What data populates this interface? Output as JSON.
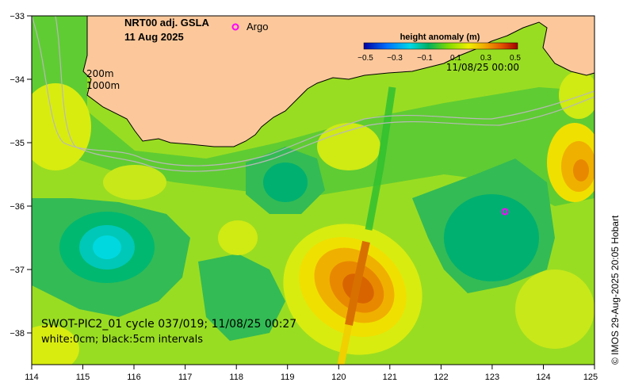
{
  "title": {
    "line1": "NRT00 adj. GSLA",
    "line2": "11 Aug 2025"
  },
  "legend": {
    "argo_symbol": "o",
    "argo_label": "Argo",
    "argo_color": "#ff00ff"
  },
  "colorbar": {
    "title": "height anomaly (m)",
    "ticks": [
      "−0.5",
      "−0.3",
      "−0.1",
      "0.1",
      "0.3",
      "0.5"
    ],
    "time_label": "11/08/25 00:00"
  },
  "isobaths": {
    "label_200": "200m",
    "label_1000": "1000m"
  },
  "swot": {
    "line1": "SWOT-PIC2_01 cycle 037/019; 11/08/25 00:27",
    "line2": "white:0cm; black:5cm intervals"
  },
  "credit": "© IMOS 29-Aug-2025 20:05 Hobart",
  "axes": {
    "x_ticks": [
      "114",
      "115",
      "116",
      "117",
      "118",
      "119",
      "120",
      "121",
      "122",
      "123",
      "124",
      "125"
    ],
    "y_ticks": [
      "−33",
      "−34",
      "−35",
      "−36",
      "−37",
      "−38"
    ]
  },
  "map_data": {
    "lon_range": [
      114,
      125
    ],
    "lat_range": [
      -38.5,
      -33
    ],
    "land_color": "#fcc89b",
    "argo_floats": [
      {
        "lon": 123.25,
        "lat": -36.1
      }
    ],
    "anomaly_features": [
      {
        "type": "warm-eddy",
        "lon": 120.4,
        "lat": -37.4,
        "peak_m": 0.32
      },
      {
        "type": "warm-eddy",
        "lon": 124.7,
        "lat": -35.5,
        "peak_m": 0.22
      },
      {
        "type": "cold-eddy",
        "lon": 115.6,
        "lat": -36.7,
        "peak_m": -0.22
      },
      {
        "type": "cold-eddy",
        "lon": 119.4,
        "lat": -35.7,
        "peak_m": -0.1
      },
      {
        "type": "cold-eddy",
        "lon": 123.2,
        "lat": -36.6,
        "peak_m": -0.1
      }
    ]
  }
}
